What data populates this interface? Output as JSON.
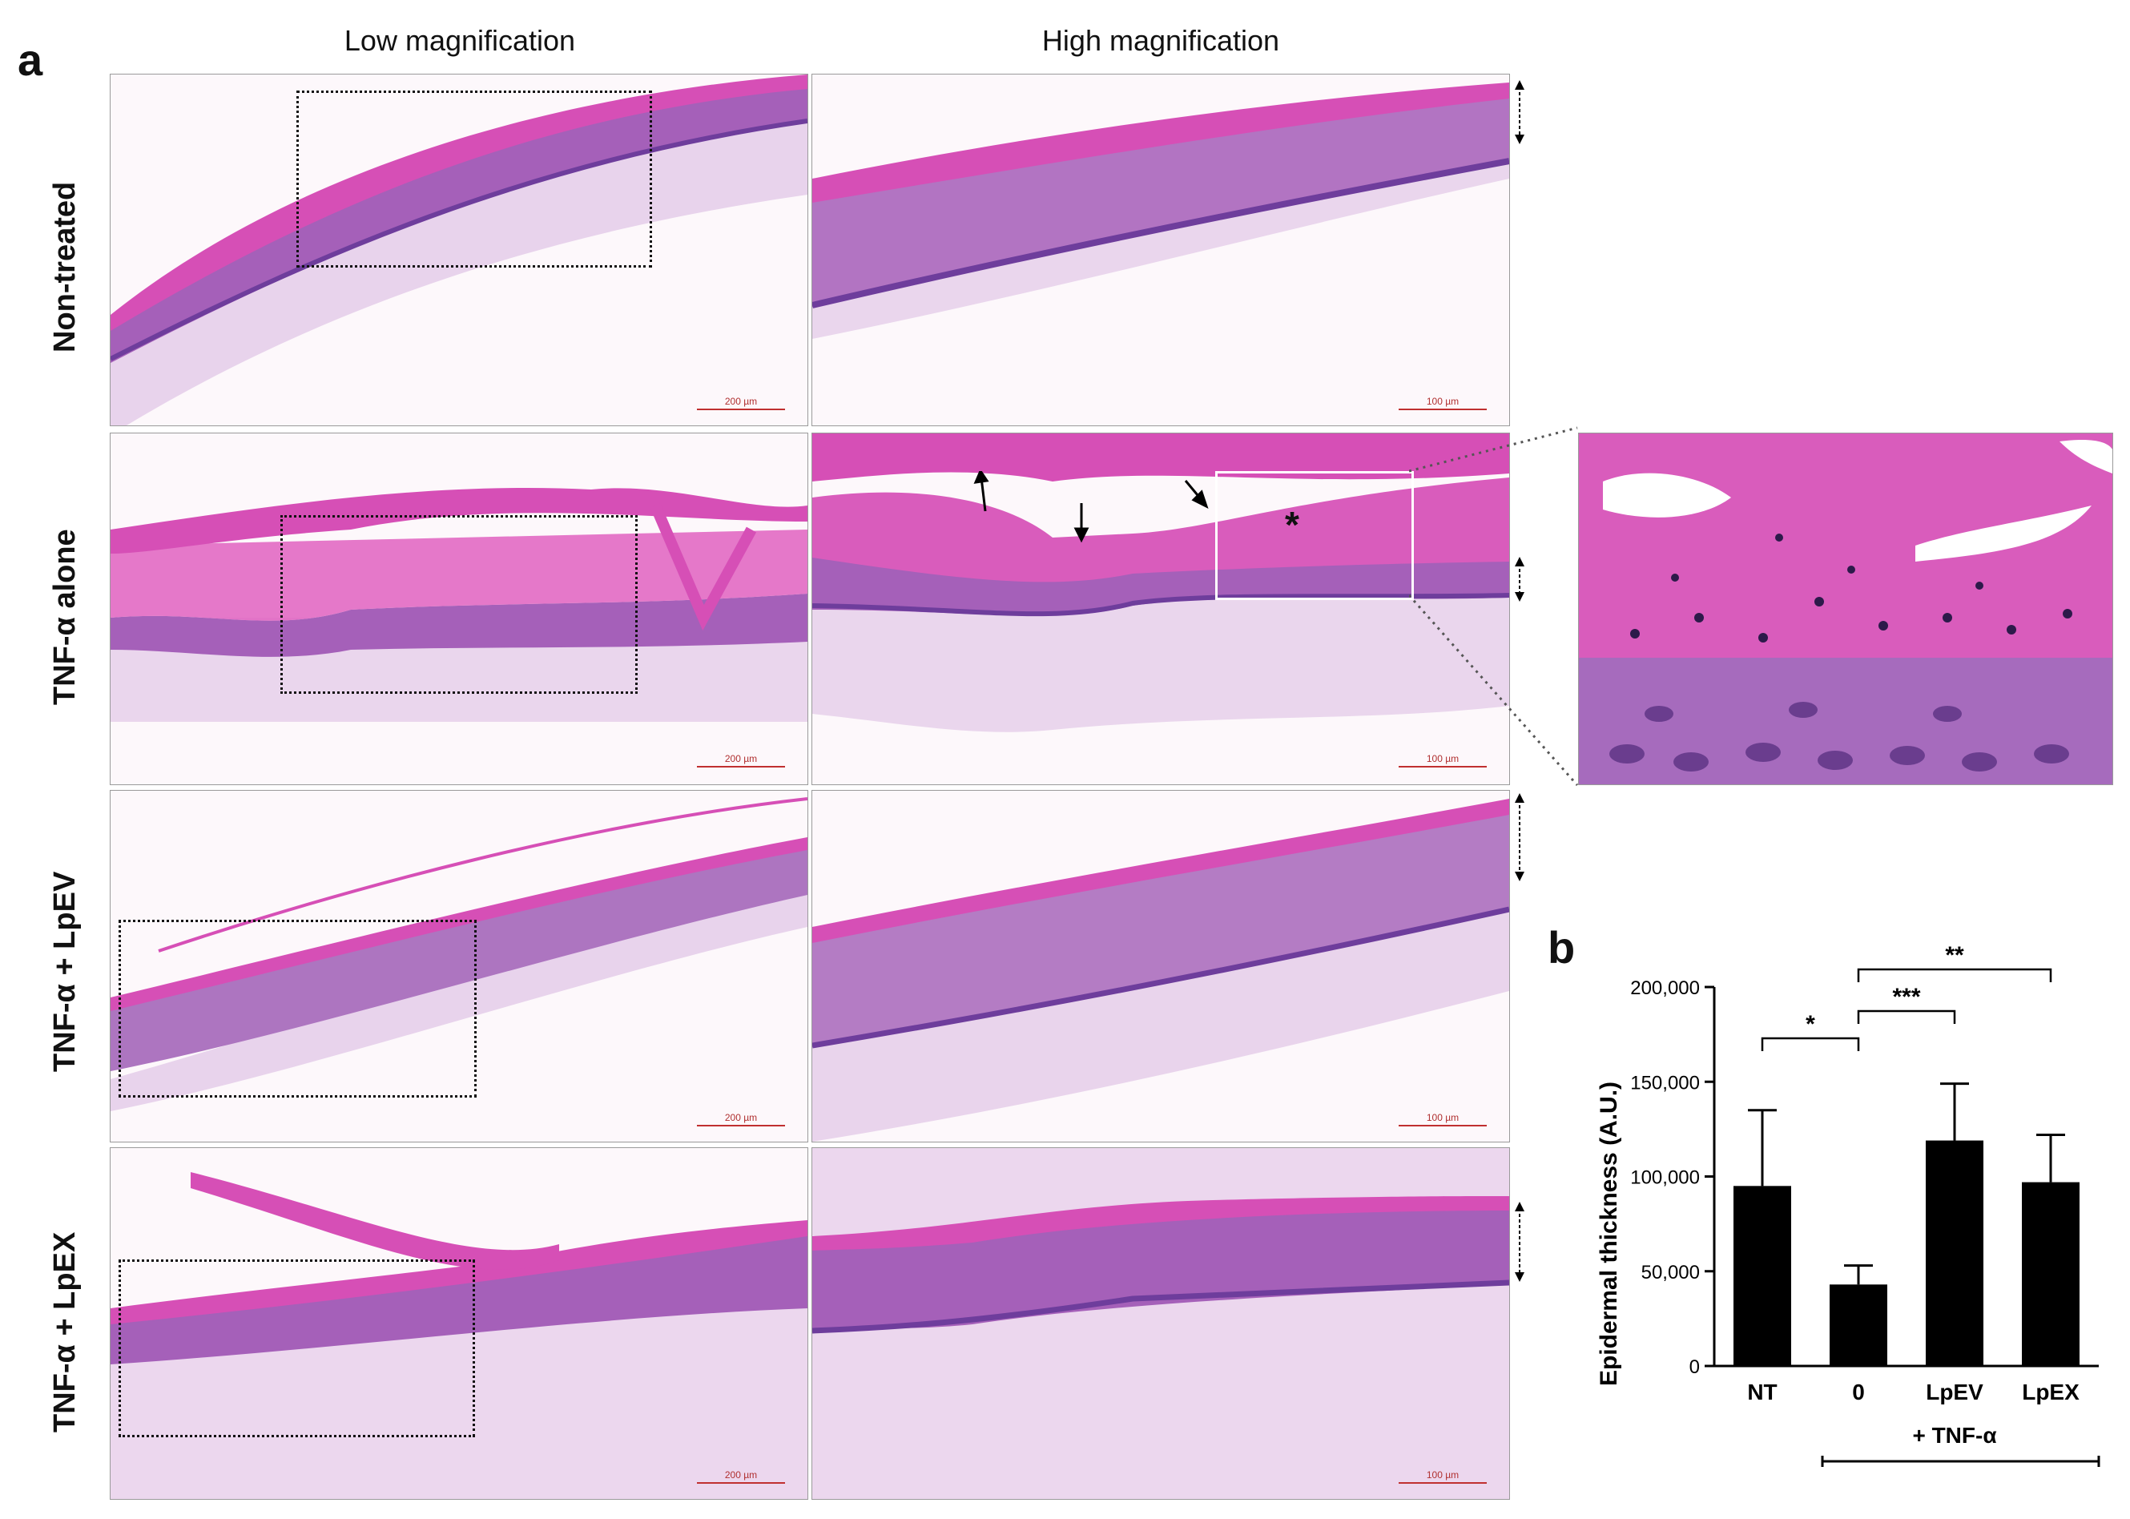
{
  "figure": {
    "panel_a_label": "a",
    "panel_b_label": "b",
    "columns": [
      "Low magnification",
      "High magnification"
    ],
    "rows": [
      {
        "label": "Non-treated"
      },
      {
        "label": "TNF-α alone"
      },
      {
        "label": "TNF-α + LpEV"
      },
      {
        "label": "TNF-α + LpEX"
      }
    ],
    "scale_low": "200 µm",
    "scale_high": "100 µm",
    "asterisk_mark": "*",
    "colors": {
      "stratum_corneum": "#d64fb6",
      "epidermis": "#9c5ab6",
      "dermis": "#e7d0ea",
      "background": "#fdf8fb",
      "basal": "#6e3d9c"
    }
  },
  "chart_data": {
    "type": "bar",
    "title": "",
    "ylabel": "Epidermal thickness (A.U.)",
    "xlabel": "",
    "categories": [
      "NT",
      "0",
      "LpEV",
      "LpEX"
    ],
    "values": [
      95000,
      43000,
      119000,
      97000
    ],
    "errors": [
      40000,
      10000,
      30000,
      25000
    ],
    "ylim": [
      0,
      200000
    ],
    "yticks": [
      0,
      50000,
      100000,
      150000,
      200000
    ],
    "ytick_labels": [
      "0",
      "50,000",
      "100,000",
      "150,000",
      "200,000"
    ],
    "group_label": "+ TNF-α",
    "group_categories": [
      "0",
      "LpEV",
      "LpEX"
    ],
    "significance": [
      {
        "from": "NT",
        "to": "0",
        "label": "*"
      },
      {
        "from": "0",
        "to": "LpEV",
        "label": "***"
      },
      {
        "from": "0",
        "to": "LpEX",
        "label": "**"
      }
    ],
    "bar_color": "#000000"
  }
}
